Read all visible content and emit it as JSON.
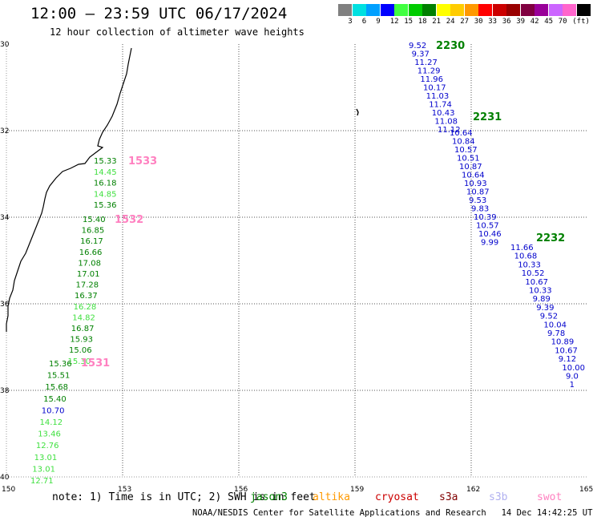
{
  "header": {
    "title": "12:00 – 23:59 UTC 06/17/2024",
    "subtitle": "12 hour collection of altimeter wave heights"
  },
  "scale": {
    "colors": [
      "#808080",
      "#00e0e0",
      "#00a0ff",
      "#0000ff",
      "#40ff40",
      "#00cc00",
      "#008000",
      "#ffff00",
      "#ffcc00",
      "#ff9900",
      "#ff0000",
      "#cc0000",
      "#990000",
      "#800040",
      "#990099",
      "#cc66ff",
      "#ff66cc",
      "#000000"
    ],
    "labels": [
      "3",
      "6",
      "9",
      "12",
      "15",
      "18",
      "21",
      "24",
      "27",
      "30",
      "33",
      "36",
      "39",
      "42",
      "45",
      "70",
      "(ft)"
    ]
  },
  "axes": {
    "lat_labels": [
      "30",
      "32",
      "34",
      "36",
      "38",
      "40"
    ],
    "lon_labels": [
      "150",
      "153",
      "156",
      "159",
      "162",
      "165"
    ],
    "lat_range": [
      30,
      40
    ],
    "lon_range": [
      150,
      165
    ],
    "grid": true
  },
  "tracks": [
    {
      "label": "1533",
      "label_color": "#ff80c0",
      "points": [
        {
          "value": "15.33",
          "color": "#008000"
        },
        {
          "value": "14.45",
          "color": "#40e040"
        },
        {
          "value": "16.18",
          "color": "#008000"
        },
        {
          "value": "14.85",
          "color": "#40e040"
        },
        {
          "value": "15.36",
          "color": "#008000"
        }
      ]
    },
    {
      "label": "1532",
      "label_color": "#ff80c0",
      "points": [
        {
          "value": "15.40",
          "color": "#008000"
        },
        {
          "value": "16.85",
          "color": "#008000"
        },
        {
          "value": "16.17",
          "color": "#008000"
        },
        {
          "value": "16.66",
          "color": "#008000"
        },
        {
          "value": "17.08",
          "color": "#008000"
        },
        {
          "value": "17.01",
          "color": "#008000"
        },
        {
          "value": "17.28",
          "color": "#008000"
        },
        {
          "value": "16.37",
          "color": "#008000"
        },
        {
          "value": "16.28",
          "color": "#40e040"
        },
        {
          "value": "14.82",
          "color": "#40e040"
        },
        {
          "value": "16.87",
          "color": "#008000"
        },
        {
          "value": "15.93",
          "color": "#008000"
        },
        {
          "value": "15.06",
          "color": "#008000"
        },
        {
          "value": "15.30",
          "color": "#40e040"
        }
      ]
    },
    {
      "label": "1531",
      "label_color": "#ff80c0",
      "points": [
        {
          "value": "15.36",
          "color": "#008000"
        },
        {
          "value": "15.51",
          "color": "#008000"
        },
        {
          "value": "15.68",
          "color": "#008000"
        },
        {
          "value": "15.40",
          "color": "#008000"
        },
        {
          "value": "10.70",
          "color": "#0000cc"
        },
        {
          "value": "14.12",
          "color": "#40e040"
        },
        {
          "value": "13.46",
          "color": "#40e040"
        },
        {
          "value": "12.76",
          "color": "#40e040"
        },
        {
          "value": "13.01",
          "color": "#40e040"
        },
        {
          "value": "13.01",
          "color": "#40e040"
        },
        {
          "value": "12.71",
          "color": "#40e040"
        }
      ]
    },
    {
      "label": "2230",
      "label_color": "#008000",
      "points": [
        {
          "value": "9.52",
          "color": "#0000cc"
        },
        {
          "value": "9.37",
          "color": "#0000cc"
        },
        {
          "value": "11.27",
          "color": "#0000cc"
        },
        {
          "value": "11.29",
          "color": "#0000cc"
        },
        {
          "value": "11.96",
          "color": "#0000cc"
        },
        {
          "value": "10.17",
          "color": "#0000cc"
        },
        {
          "value": "11.03",
          "color": "#0000cc"
        },
        {
          "value": "11.74",
          "color": "#0000cc"
        },
        {
          "value": "10.43",
          "color": "#0000cc"
        },
        {
          "value": "11.08",
          "color": "#0000cc"
        },
        {
          "value": "11.12",
          "color": "#0000cc"
        }
      ]
    },
    {
      "label": "2231",
      "label_color": "#008000",
      "points": [
        {
          "value": "10.64",
          "color": "#0000cc"
        },
        {
          "value": "10.84",
          "color": "#0000cc"
        },
        {
          "value": "10.57",
          "color": "#0000cc"
        },
        {
          "value": "10.51",
          "color": "#0000cc"
        },
        {
          "value": "10.87",
          "color": "#0000cc"
        },
        {
          "value": "10.64",
          "color": "#0000cc"
        },
        {
          "value": "10.93",
          "color": "#0000cc"
        },
        {
          "value": "10.87",
          "color": "#0000cc"
        },
        {
          "value": "9.53",
          "color": "#0000cc"
        },
        {
          "value": "9.83",
          "color": "#0000cc"
        },
        {
          "value": "10.39",
          "color": "#0000cc"
        },
        {
          "value": "10.57",
          "color": "#0000cc"
        },
        {
          "value": "10.46",
          "color": "#0000cc"
        },
        {
          "value": "9.99",
          "color": "#0000cc"
        }
      ]
    },
    {
      "label": "2232",
      "label_color": "#008000",
      "points": [
        {
          "value": "11.66",
          "color": "#0000cc"
        },
        {
          "value": "10.68",
          "color": "#0000cc"
        },
        {
          "value": "10.33",
          "color": "#0000cc"
        },
        {
          "value": "10.52",
          "color": "#0000cc"
        },
        {
          "value": "10.67",
          "color": "#0000cc"
        },
        {
          "value": "10.33",
          "color": "#0000cc"
        },
        {
          "value": "9.89",
          "color": "#0000cc"
        },
        {
          "value": "9.39",
          "color": "#0000cc"
        },
        {
          "value": "9.52",
          "color": "#0000cc"
        },
        {
          "value": "10.04",
          "color": "#0000cc"
        },
        {
          "value": "9.78",
          "color": "#0000cc"
        },
        {
          "value": "10.89",
          "color": "#0000cc"
        },
        {
          "value": "10.67",
          "color": "#0000cc"
        },
        {
          "value": "9.12",
          "color": "#0000cc"
        },
        {
          "value": "10.00",
          "color": "#0000cc"
        },
        {
          "value": "9.0",
          "color": "#0000cc"
        },
        {
          "value": "1",
          "color": "#0000cc"
        }
      ]
    }
  ],
  "note": "note: 1) Time is in UTC; 2) SWH is in feet",
  "satellites": [
    {
      "name": "jason3",
      "color": "#008000"
    },
    {
      "name": "altika",
      "color": "#ff9900"
    },
    {
      "name": "cryosat",
      "color": "#cc0000"
    },
    {
      "name": "s3a",
      "color": "#800000"
    },
    {
      "name": "s3b",
      "color": "#b0b0f0"
    },
    {
      "name": "swot",
      "color": "#ff80c0"
    }
  ],
  "footer": "NOAA/NESDIS Center for Satellite Applications and Research   14 Dec 14:42:25 UTC 2024"
}
